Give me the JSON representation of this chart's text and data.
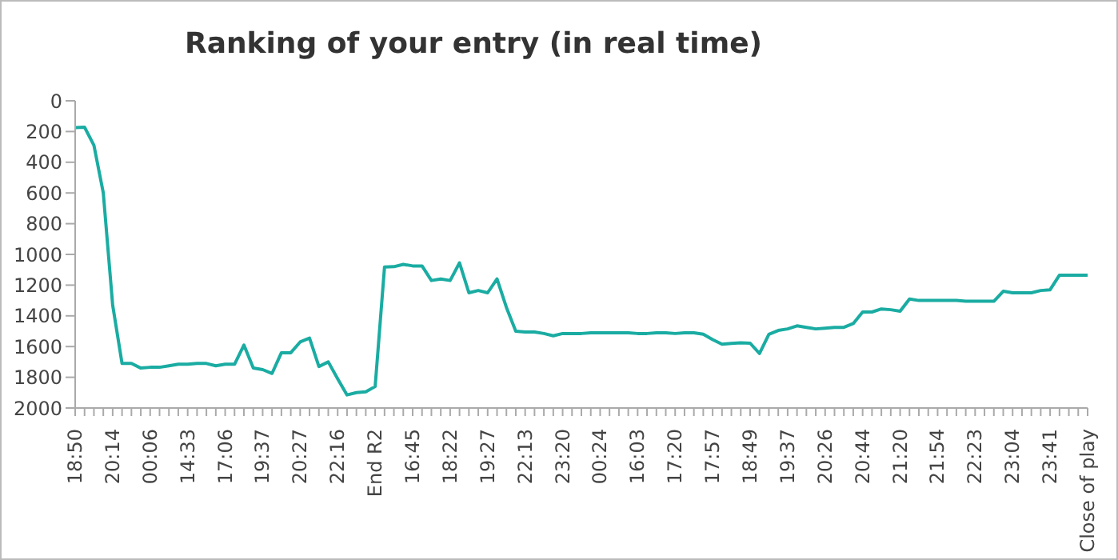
{
  "chart_data": {
    "type": "line",
    "title": "Ranking of your entry (in real time)",
    "categories": [
      "18:50",
      null,
      null,
      null,
      "20:14",
      null,
      null,
      null,
      "00:06",
      null,
      null,
      null,
      "14:33",
      null,
      null,
      null,
      "17:06",
      null,
      null,
      null,
      "19:37",
      null,
      null,
      null,
      "20:27",
      null,
      null,
      null,
      "22:16",
      null,
      null,
      null,
      "End R2",
      null,
      null,
      null,
      "16:45",
      null,
      null,
      null,
      "18:22",
      null,
      null,
      null,
      "19:27",
      null,
      null,
      null,
      "22:13",
      null,
      null,
      null,
      "23:20",
      null,
      null,
      null,
      "00:24",
      null,
      null,
      null,
      "16:03",
      null,
      null,
      null,
      "17:20",
      null,
      null,
      null,
      "17:57",
      null,
      null,
      null,
      "18:49",
      null,
      null,
      null,
      "19:37",
      null,
      null,
      null,
      "20:26",
      null,
      null,
      null,
      "20:44",
      null,
      null,
      null,
      "21:20",
      null,
      null,
      null,
      "21:54",
      null,
      null,
      null,
      "22:23",
      null,
      null,
      null,
      "23:04",
      null,
      null,
      null,
      "23:41",
      null,
      null,
      null,
      "Close of play"
    ],
    "series": [
      {
        "color": "#1aaca2",
        "values": [
          175,
          172,
          290,
          600,
          1330,
          1710,
          1710,
          1740,
          1735,
          1735,
          1725,
          1715,
          1715,
          1710,
          1710,
          1725,
          1715,
          1715,
          1590,
          1740,
          1750,
          1775,
          1640,
          1640,
          1570,
          1545,
          1730,
          1700,
          1810,
          1915,
          1900,
          1895,
          1860,
          1082,
          1080,
          1065,
          1075,
          1075,
          1170,
          1160,
          1170,
          1055,
          1250,
          1235,
          1250,
          1160,
          1345,
          1500,
          1505,
          1505,
          1515,
          1530,
          1515,
          1515,
          1515,
          1510,
          1510,
          1510,
          1510,
          1510,
          1515,
          1515,
          1510,
          1510,
          1515,
          1510,
          1510,
          1520,
          1555,
          1585,
          1580,
          1575,
          1578,
          1645,
          1520,
          1495,
          1485,
          1465,
          1475,
          1485,
          1480,
          1475,
          1475,
          1450,
          1375,
          1375,
          1355,
          1360,
          1370,
          1290,
          1300,
          1300,
          1300,
          1300,
          1300,
          1305,
          1305,
          1305,
          1305,
          1240,
          1250,
          1250,
          1250,
          1235,
          1230,
          1135,
          1135,
          1135,
          1135
        ]
      }
    ],
    "ylim": [
      2000,
      0
    ],
    "yticks": [
      0,
      200,
      400,
      600,
      800,
      1000,
      1200,
      1400,
      1600,
      1800,
      2000
    ],
    "grid": false,
    "legend": false,
    "marker": "none",
    "line_style": "solid"
  }
}
